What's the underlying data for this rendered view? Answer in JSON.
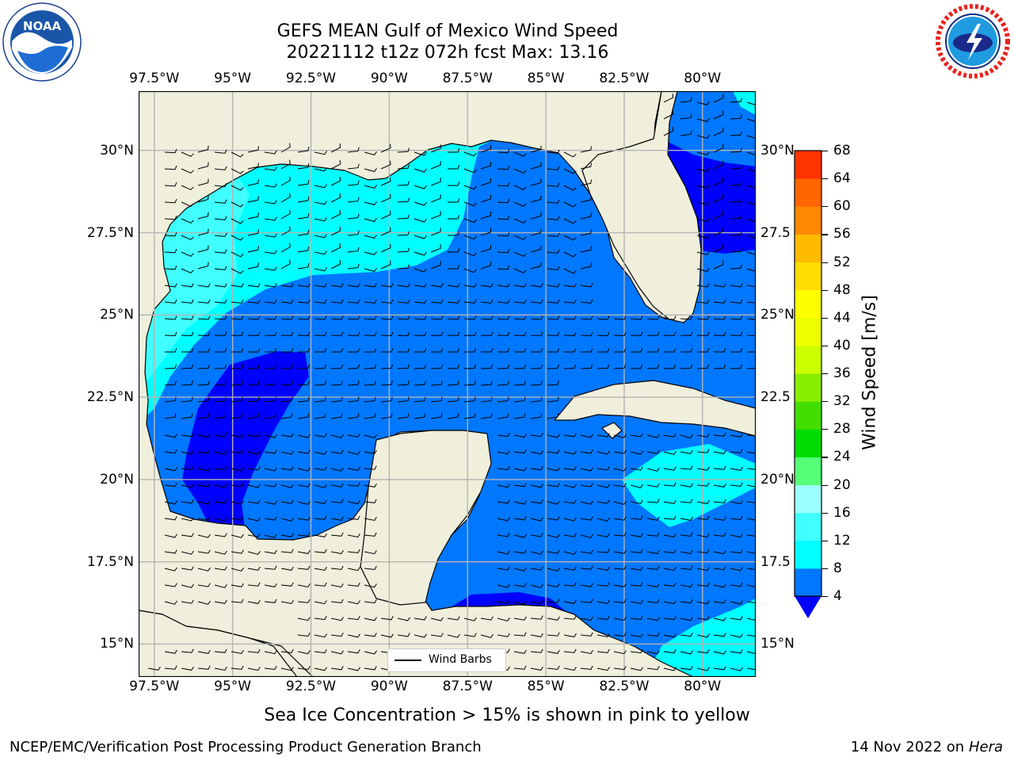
{
  "header": {
    "title_line1": "GEFS MEAN Gulf of Mexico Wind Speed",
    "title_line2": "20221112 t12z 072h fcst   Max: 13.16"
  },
  "logos": {
    "left": {
      "name": "noaa-logo",
      "text": "NOAA",
      "ring_text": "NATIONAL OCEANIC AND ATMOSPHERIC ADMINISTRATION · U.S. DEPARTMENT OF COMMERCE"
    },
    "right": {
      "name": "nws-logo",
      "ring_text": "NATIONAL WEATHER SERVICE"
    }
  },
  "map": {
    "lon_ticks": [
      "97.5°W",
      "95°W",
      "92.5°W",
      "90°W",
      "87.5°W",
      "85°W",
      "82.5°W",
      "80°W"
    ],
    "lat_ticks_left": [
      "30°N",
      "27.5°N",
      "25°N",
      "22.5°N",
      "20°N",
      "17.5°N",
      "15°N"
    ],
    "lat_ticks_right": [
      "30°N",
      "27.5",
      "25°N",
      "22.5",
      "20°N",
      "17.5",
      "15°N"
    ],
    "extent": {
      "lon_min": -98,
      "lon_max": -78.3,
      "lat_min": 14,
      "lat_max": 31.8
    },
    "colors": {
      "land": "#efefdc",
      "grid": "#b4b4b4",
      "coast": "#000000"
    },
    "legend_label": "Wind Barbs"
  },
  "colorbar": {
    "label": "Wind Speed [m/s]",
    "ticks": [
      "68",
      "64",
      "60",
      "56",
      "52",
      "48",
      "44",
      "40",
      "36",
      "32",
      "28",
      "24",
      "20",
      "16",
      "12",
      "8",
      "4"
    ],
    "levels": [
      4,
      8,
      12,
      16,
      20,
      24,
      28,
      32,
      36,
      40,
      44,
      48,
      52,
      56,
      60,
      64,
      68
    ],
    "colors": [
      "#0077ff",
      "#00ffff",
      "#40ffff",
      "#9cffff",
      "#55ff77",
      "#00dd00",
      "#44dd00",
      "#88ee00",
      "#ccff00",
      "#eeff00",
      "#ffff00",
      "#ffdd00",
      "#ffbb00",
      "#ff8800",
      "#ff6600",
      "#ff3300"
    ],
    "under_color": "#0000ff"
  },
  "footer": {
    "subtitle": "Sea Ice Concentration > 15% is shown in pink to yellow",
    "credit": "NCEP/EMC/Verification Post Processing Product Generation Branch",
    "date": "14 Nov 2022 on",
    "host": "Hera"
  }
}
